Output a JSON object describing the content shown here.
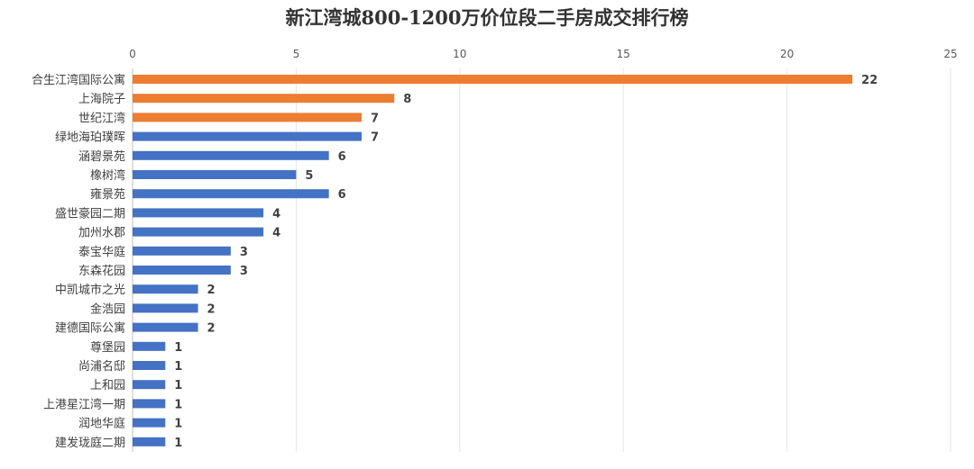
{
  "chart_data": {
    "type": "bar",
    "orientation": "horizontal",
    "title": "新江湾城800-1200万价位段二手房成交排行榜",
    "xlabel": "",
    "ylabel": "",
    "xlim": [
      0,
      25
    ],
    "xticks": [
      0,
      5,
      10,
      15,
      20,
      25
    ],
    "grid": true,
    "legend": "none",
    "axis_position": "top",
    "colors": {
      "highlight": "#ED7D31",
      "default": "#4472C4",
      "grid": "#E5E5E5"
    },
    "categories": [
      "合生江湾国际公寓",
      "上海院子",
      "世纪江湾",
      "绿地海珀璞晖",
      "涵碧景苑",
      "橡树湾",
      "雍景苑",
      "盛世豪园二期",
      "加州水郡",
      "泰宝华庭",
      "东森花园",
      "中凯城市之光",
      "金浩园",
      "建德国际公寓",
      "尊堡园",
      "尚浦名邸",
      "上和园",
      "上港星江湾一期",
      "润地华庭",
      "建发珑庭二期"
    ],
    "values": [
      22,
      8,
      7,
      7,
      6,
      5,
      6,
      4,
      4,
      3,
      3,
      2,
      2,
      2,
      1,
      1,
      1,
      1,
      1,
      1
    ],
    "highlighted": [
      true,
      true,
      true,
      false,
      false,
      false,
      false,
      false,
      false,
      false,
      false,
      false,
      false,
      false,
      false,
      false,
      false,
      false,
      false,
      false
    ]
  }
}
